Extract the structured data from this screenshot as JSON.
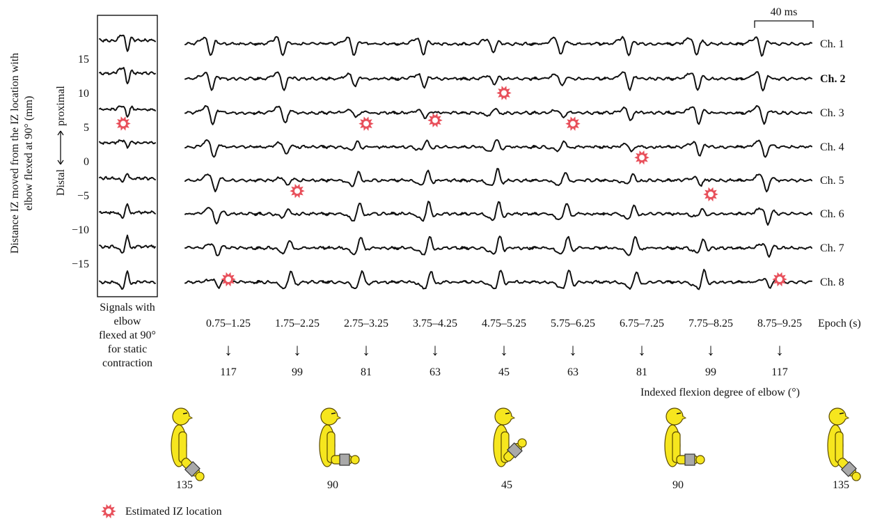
{
  "y_axis": {
    "label_line1": "Distance IZ moved from the IZ location with",
    "label_line2": "elbow flexed at 90° (mm)",
    "direction_distal": "Distal",
    "direction_proximal": "proximal",
    "ticks": [
      "15",
      "10",
      "5",
      "0",
      "−5",
      "−10",
      "−15"
    ]
  },
  "static_panel": {
    "caption_lines": [
      "Signals with",
      "elbow",
      "flexed at 90°",
      "for static",
      "contraction"
    ],
    "iz_channel_position": 3.4
  },
  "scale_bar": {
    "label": "40 ms"
  },
  "channels": [
    "Ch. 1",
    "Ch. 2",
    "Ch. 3",
    "Ch. 4",
    "Ch. 5",
    "Ch. 6",
    "Ch. 7",
    "Ch. 8"
  ],
  "highlighted_channel": 1,
  "epochs": [
    {
      "label": "0.75–1.25",
      "flexion": "117",
      "iz_channel_position": 7.4
    },
    {
      "label": "1.75–2.25",
      "flexion": "99",
      "iz_channel_position": 4.4
    },
    {
      "label": "2.75–3.25",
      "flexion": "81",
      "iz_channel_position": 2.4
    },
    {
      "label": "3.75–4.25",
      "flexion": "63",
      "iz_channel_position": 2.3
    },
    {
      "label": "4.75–5.25",
      "flexion": "45",
      "iz_channel_position": 1.5
    },
    {
      "label": "5.75–6.25",
      "flexion": "63",
      "iz_channel_position": 2.4
    },
    {
      "label": "6.75–7.25",
      "flexion": "81",
      "iz_channel_position": 3.4
    },
    {
      "label": "7.75–8.25",
      "flexion": "99",
      "iz_channel_position": 4.5
    },
    {
      "label": "8.75–9.25",
      "flexion": "117",
      "iz_channel_position": 7.4
    }
  ],
  "epoch_unit": "Epoch (s)",
  "flexion_label": "Indexed flexion degree of elbow (°)",
  "arrow_glyph": "↓",
  "figures": [
    {
      "angle": "135",
      "forearm_angle": 45
    },
    {
      "angle": "90",
      "forearm_angle": 0
    },
    {
      "angle": "45",
      "forearm_angle": -45
    },
    {
      "angle": "90",
      "forearm_angle": 0
    },
    {
      "angle": "135",
      "forearm_angle": 45
    }
  ],
  "legend": {
    "text": "Estimated IZ location",
    "marker_color": "#e8505b"
  },
  "colors": {
    "figure_body": "#f6e61e",
    "figure_outline": "#5a4a00",
    "forearm_block": "#a9a9a9"
  }
}
